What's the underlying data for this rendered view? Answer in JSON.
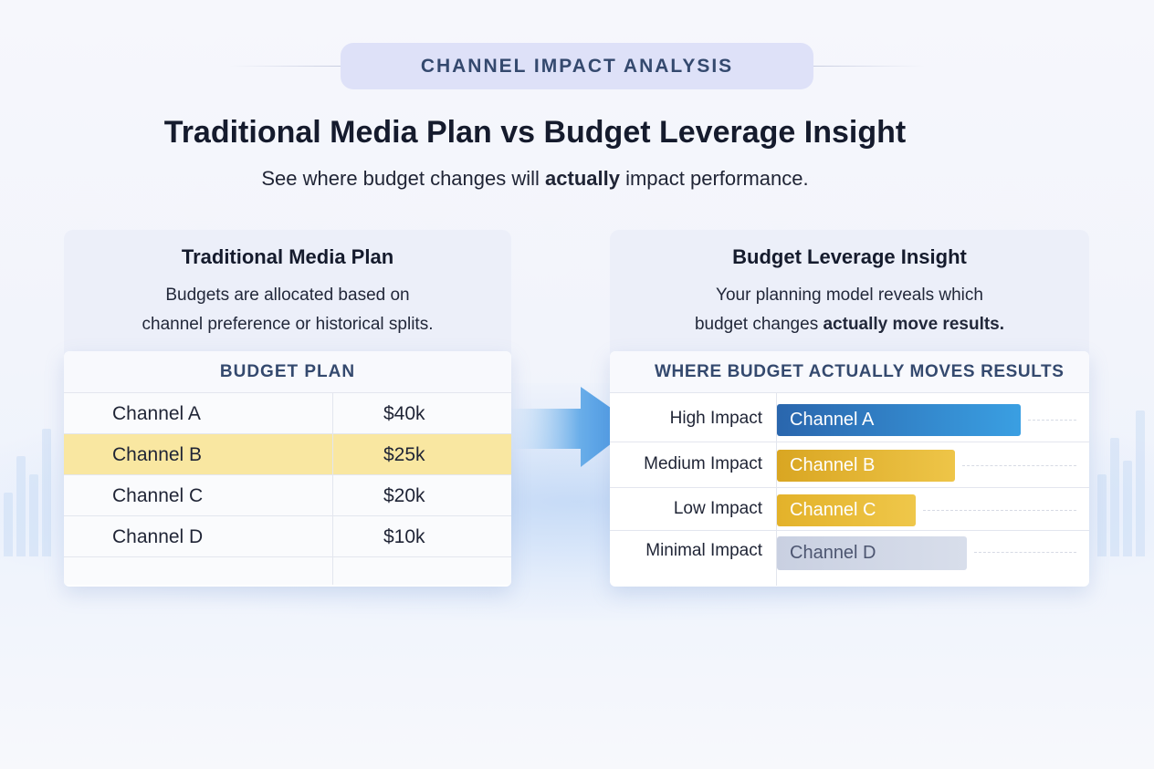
{
  "header": {
    "pill": "CHANNEL IMPACT ANALYSIS",
    "title": "Traditional Media Plan vs Budget Leverage Insight",
    "subtitle_pre": "See where budget changes will ",
    "subtitle_bold": "actually",
    "subtitle_post": " impact performance."
  },
  "traditional": {
    "title": "Traditional Media Plan",
    "desc_line1": "Budgets are allocated based on",
    "desc_line2": "channel preference or historical splits.",
    "table_header": "BUDGET PLAN",
    "rows": [
      {
        "channel": "Channel A",
        "budget": "$40k"
      },
      {
        "channel": "Channel B",
        "budget": "$25k"
      },
      {
        "channel": "Channel C",
        "budget": "$20k"
      },
      {
        "channel": "Channel D",
        "budget": "$10k"
      }
    ]
  },
  "leverage": {
    "title": "Budget Leverage Insight",
    "desc_line1": "Your planning model reveals which",
    "desc_line2_pre": "budget changes ",
    "desc_line2_bold": "actually move results.",
    "table_header": "WHERE BUDGET ACTUALLY MOVES RESULTS",
    "rows": [
      {
        "impact": "High Impact",
        "channel": "Channel A",
        "level": 1.0
      },
      {
        "impact": "Medium Impact",
        "channel": "Channel B",
        "level": 0.73
      },
      {
        "impact": "Low Impact",
        "channel": "Channel C",
        "level": 0.57
      },
      {
        "impact": "Minimal Impact",
        "channel": "Channel D",
        "level": 0.78
      }
    ]
  },
  "colors": {
    "accent_blue": "#3a9fe2",
    "accent_gold": "#eec548",
    "highlight_row": "#f9e7a1",
    "muted_bar": "#d8deeb"
  }
}
